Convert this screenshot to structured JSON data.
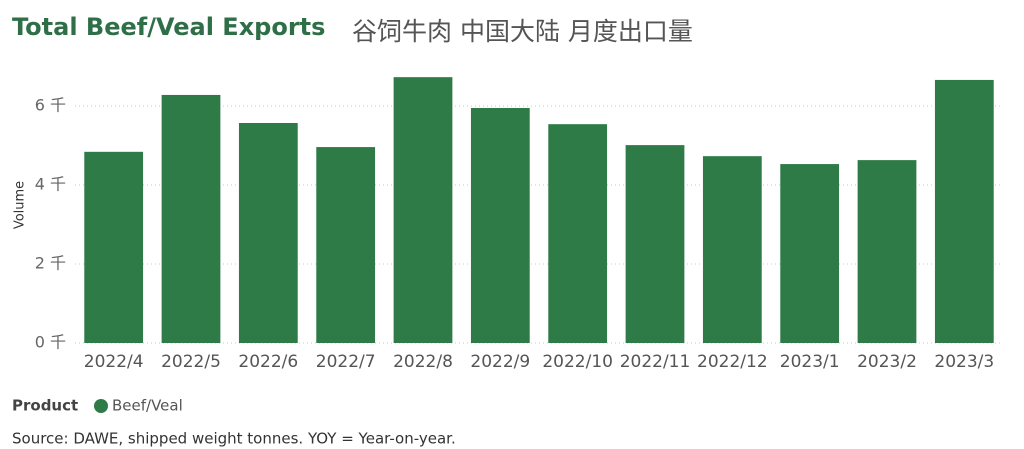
{
  "chart_data": {
    "type": "bar",
    "title": "Total Beef/Veal Exports",
    "subtitle": "谷饲牛肉 中国大陆 月度出口量",
    "y_label": "Volume",
    "categories": [
      "2022/4",
      "2022/5",
      "2022/6",
      "2022/7",
      "2022/8",
      "2022/9",
      "2022/10",
      "2022/11",
      "2022/12",
      "2023/1",
      "2023/2",
      "2023/3"
    ],
    "series": [
      {
        "name": "Beef/Veal",
        "color": "#2e7b48",
        "values": [
          4840,
          6280,
          5570,
          4960,
          6730,
          5950,
          5540,
          5010,
          4730,
          4530,
          4630,
          6660
        ]
      }
    ],
    "ylim": [
      0,
      7000
    ],
    "yticks": [
      {
        "value": 0,
        "label": "0 千"
      },
      {
        "value": 2000,
        "label": "2 千"
      },
      {
        "value": 4000,
        "label": "4 千"
      },
      {
        "value": 6000,
        "label": "6 千"
      }
    ],
    "grid": true,
    "legend_title": "Product",
    "legend": "bottom-left",
    "footnote": "Source: DAWE, shipped weight tonnes. YOY = Year-on-year."
  }
}
